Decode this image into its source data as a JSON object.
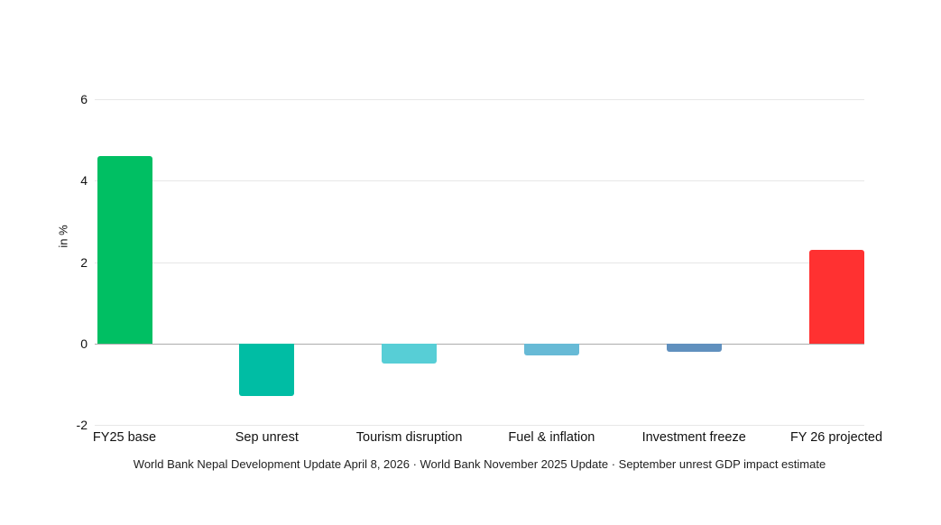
{
  "chart_data": {
    "type": "bar",
    "title": "",
    "xlabel": "",
    "ylabel": "in %",
    "categories": [
      "FY25 base",
      "Sep unrest",
      "Tourism disruption",
      "Fuel & inflation",
      "Investment freeze",
      "FY 26 projected"
    ],
    "values": [
      4.6,
      -1.3,
      -0.5,
      -0.3,
      -0.2,
      2.3
    ],
    "bar_colors": [
      "#00bf63",
      "#00bda4",
      "#57ced6",
      "#67bad6",
      "#6090be",
      "#ff3131"
    ],
    "ylim": [
      -2,
      6
    ],
    "yticks": [
      6,
      4,
      2,
      0,
      -2
    ],
    "grid": true,
    "legend": false,
    "background_color": "#ffffff",
    "gridline_color": "#e7e7e7",
    "zero_line_color": "#adadad",
    "text_color": "#111111",
    "caption": "World Bank Nepal Development Update April 8, 2026 · World Bank November 2025 Update · September unrest GDP impact estimate"
  }
}
